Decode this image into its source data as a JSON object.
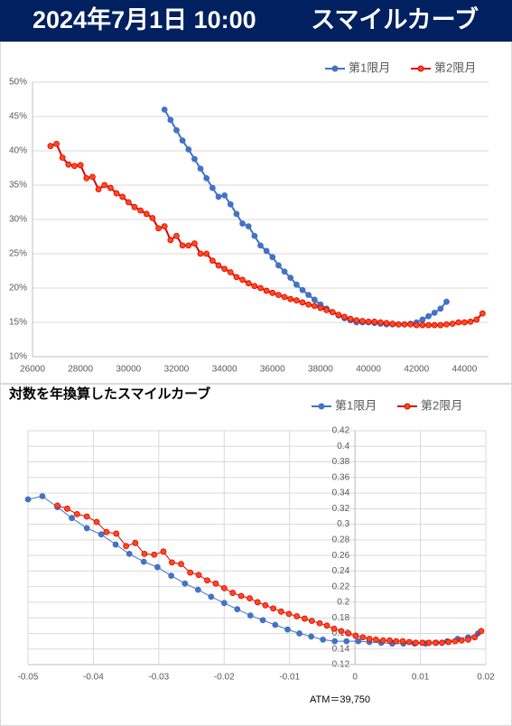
{
  "header": {
    "title": "2024年7月1日 10:00",
    "subtitle": "スマイルカーブ"
  },
  "chart_data": [
    {
      "type": "line",
      "xlim": [
        26000,
        45000
      ],
      "xticks": [
        26000,
        28000,
        30000,
        32000,
        34000,
        36000,
        38000,
        40000,
        42000,
        44000
      ],
      "ylim": [
        10,
        50
      ],
      "yticks": [
        {
          "value": 10,
          "label": "10%"
        },
        {
          "value": 15,
          "label": "15%"
        },
        {
          "value": 20,
          "label": "20%"
        },
        {
          "value": 25,
          "label": "25%"
        },
        {
          "value": 30,
          "label": "30%"
        },
        {
          "value": 35,
          "label": "35%"
        },
        {
          "value": 40,
          "label": "40%"
        },
        {
          "value": 45,
          "label": "45%"
        },
        {
          "value": 50,
          "label": "50%"
        }
      ],
      "grid": true,
      "vgrid": false,
      "legend": "top-right",
      "series": [
        {
          "name": "第1限月",
          "color": "#4472c4",
          "x": [
            31500,
            31750,
            32000,
            32250,
            32500,
            32750,
            33000,
            33250,
            33500,
            33750,
            34000,
            34250,
            34500,
            34750,
            35000,
            35250,
            35500,
            35750,
            36000,
            36250,
            36500,
            36750,
            37000,
            37250,
            37500,
            37750,
            38000,
            38250,
            38500,
            38750,
            39000,
            39250,
            39500,
            39750,
            40000,
            40250,
            40500,
            40750,
            41000,
            41250,
            41500,
            41750,
            42000,
            42250,
            42500,
            42750,
            43000,
            43250
          ],
          "values": [
            46,
            44.5,
            43,
            41.5,
            40.2,
            38.8,
            37.4,
            36,
            34.6,
            33.3,
            33.5,
            32.2,
            30.8,
            29.4,
            29,
            27.6,
            26.2,
            25.4,
            24.5,
            23.3,
            22.4,
            21.5,
            20.5,
            19.7,
            19,
            18.3,
            17.6,
            17,
            16.5,
            16,
            15.6,
            15.3,
            15,
            15,
            15,
            14.9,
            14.8,
            14.7,
            14.7,
            14.7,
            14.7,
            14.8,
            15,
            15.4,
            15.9,
            16.4,
            17,
            18
          ]
        },
        {
          "name": "第2限月",
          "color": "#e00000",
          "fill": "#ff4a1a",
          "x": [
            26750,
            27000,
            27250,
            27500,
            27750,
            28000,
            28250,
            28500,
            28750,
            29000,
            29250,
            29500,
            29750,
            30000,
            30250,
            30500,
            30750,
            31000,
            31250,
            31500,
            31750,
            32000,
            32250,
            32500,
            32750,
            33000,
            33250,
            33500,
            33750,
            34000,
            34250,
            34500,
            34750,
            35000,
            35250,
            35500,
            35750,
            36000,
            36250,
            36500,
            36750,
            37000,
            37250,
            37500,
            37750,
            38000,
            38250,
            38500,
            38750,
            39000,
            39250,
            39500,
            39750,
            40000,
            40250,
            40500,
            40750,
            41000,
            41250,
            41500,
            41750,
            42000,
            42250,
            42500,
            42750,
            43000,
            43250,
            43500,
            43750,
            44000,
            44250,
            44500,
            44750
          ],
          "values": [
            40.7,
            41,
            39,
            38,
            37.8,
            37.9,
            36,
            36.2,
            34.4,
            35,
            34.6,
            33.8,
            33.3,
            32.5,
            31.8,
            31.3,
            30.8,
            30.2,
            28.7,
            29,
            27,
            27.6,
            26.2,
            26.2,
            26.5,
            25,
            25,
            24,
            23.3,
            22.8,
            22.3,
            21.6,
            21.2,
            20.7,
            20.3,
            20,
            19.6,
            19.3,
            19,
            18.7,
            18.4,
            18.2,
            17.9,
            17.6,
            17.4,
            17.1,
            16.8,
            16.5,
            16.1,
            15.8,
            15.5,
            15.3,
            15.2,
            15.1,
            15.1,
            15,
            14.9,
            14.8,
            14.7,
            14.7,
            14.7,
            14.6,
            14.6,
            14.6,
            14.6,
            14.6,
            14.7,
            14.8,
            15,
            15,
            15.1,
            15.4,
            16.3
          ]
        }
      ]
    },
    {
      "type": "line",
      "title": "対数を年換算したスマイルカーブ",
      "annotation": "ATM＝39,750",
      "xlim": [
        -0.05,
        0.02
      ],
      "xticks": [
        -0.05,
        -0.04,
        -0.03,
        -0.02,
        -0.01,
        0,
        0.01,
        0.02
      ],
      "ylim": [
        0.12,
        0.42
      ],
      "yticks": [
        0.12,
        0.14,
        0.16,
        0.18,
        0.2,
        0.22,
        0.24,
        0.26,
        0.28,
        0.3,
        0.32,
        0.34,
        0.36,
        0.38,
        0.4,
        0.42
      ],
      "grid": true,
      "vgrid": true,
      "legend": "top-right",
      "yaxis_at": 0,
      "series": [
        {
          "name": "第1限月",
          "color": "#4472c4",
          "x": [
            -0.05,
            -0.0478,
            -0.0455,
            -0.0433,
            -0.041,
            -0.0388,
            -0.0366,
            -0.0345,
            -0.0323,
            -0.0302,
            -0.0281,
            -0.026,
            -0.024,
            -0.022,
            -0.02,
            -0.018,
            -0.016,
            -0.0141,
            -0.0122,
            -0.0103,
            -0.0085,
            -0.0067,
            -0.0049,
            -0.0031,
            -0.0013,
            0.0005,
            0.0022,
            0.004,
            0.0057,
            0.0074,
            0.0091,
            0.0108,
            0.0124,
            0.0141,
            0.0157,
            0.0173,
            0.0188
          ],
          "values": [
            0.332,
            0.336,
            0.322,
            0.308,
            0.295,
            0.287,
            0.274,
            0.262,
            0.252,
            0.245,
            0.234,
            0.224,
            0.216,
            0.207,
            0.199,
            0.191,
            0.183,
            0.177,
            0.171,
            0.165,
            0.16,
            0.156,
            0.152,
            0.15,
            0.15,
            0.15,
            0.149,
            0.148,
            0.147,
            0.147,
            0.147,
            0.147,
            0.148,
            0.15,
            0.153,
            0.155,
            0.16
          ]
        },
        {
          "name": "第2限月",
          "color": "#e00000",
          "fill": "#ff4a1a",
          "x": [
            -0.0455,
            -0.044,
            -0.0425,
            -0.041,
            -0.0395,
            -0.038,
            -0.0365,
            -0.035,
            -0.0336,
            -0.0322,
            -0.0307,
            -0.0293,
            -0.028,
            -0.0266,
            -0.0252,
            -0.0239,
            -0.0226,
            -0.0213,
            -0.02,
            -0.0187,
            -0.0174,
            -0.0161,
            -0.0149,
            -0.0137,
            -0.0125,
            -0.0113,
            -0.0101,
            -0.0089,
            -0.0077,
            -0.0066,
            -0.0054,
            -0.0043,
            -0.0032,
            -0.0021,
            -0.001,
            0.0001,
            0.0012,
            0.0022,
            0.0032,
            0.0043,
            0.0053,
            0.0063,
            0.0073,
            0.0083,
            0.0093,
            0.0103,
            0.0113,
            0.0123,
            0.0133,
            0.0143,
            0.0153,
            0.0163,
            0.0173,
            0.0183,
            0.0193
          ],
          "values": [
            0.324,
            0.32,
            0.313,
            0.31,
            0.303,
            0.29,
            0.288,
            0.272,
            0.276,
            0.262,
            0.261,
            0.265,
            0.251,
            0.249,
            0.238,
            0.235,
            0.228,
            0.224,
            0.218,
            0.212,
            0.208,
            0.205,
            0.2,
            0.196,
            0.192,
            0.188,
            0.185,
            0.182,
            0.179,
            0.176,
            0.173,
            0.17,
            0.166,
            0.163,
            0.16,
            0.157,
            0.155,
            0.153,
            0.152,
            0.151,
            0.151,
            0.15,
            0.15,
            0.149,
            0.148,
            0.148,
            0.148,
            0.148,
            0.148,
            0.149,
            0.15,
            0.151,
            0.152,
            0.155,
            0.163
          ]
        }
      ]
    }
  ]
}
